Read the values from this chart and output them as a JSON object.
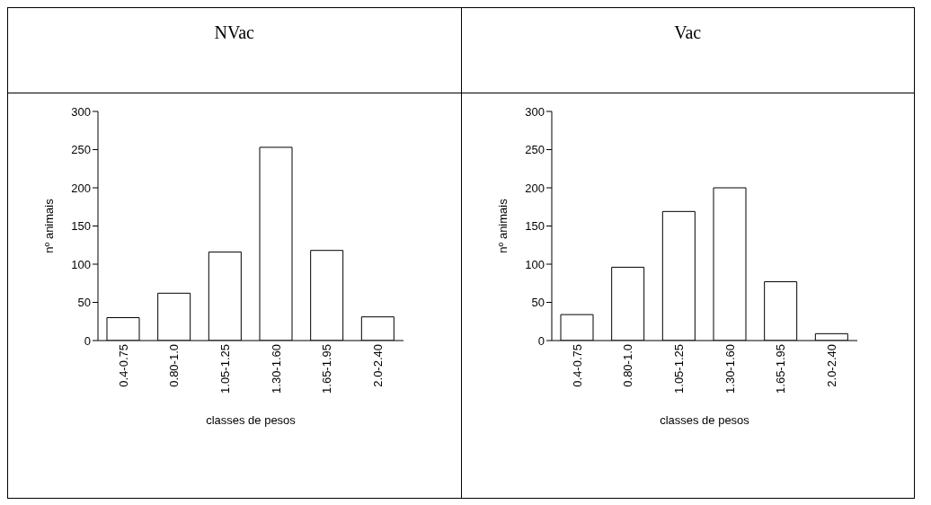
{
  "chart_data": [
    {
      "type": "bar",
      "title": "NVac",
      "xlabel": "classes de pesos",
      "ylabel": "nº animais",
      "categories": [
        "0.4-0.75",
        "0.80-1.0",
        "1.05-1.25",
        "1.30-1.60",
        "1.65-1.95",
        "2.0-2.40"
      ],
      "values": [
        30,
        62,
        116,
        253,
        118,
        31
      ],
      "color": "#ffffff",
      "ylim": [
        0,
        300
      ],
      "yticks": [
        0,
        50,
        100,
        150,
        200,
        250,
        300
      ]
    },
    {
      "type": "bar",
      "title": "Vac",
      "xlabel": "classes de pesos",
      "ylabel": "nº animais",
      "categories": [
        "0.4-0.75",
        "0.80-1.0",
        "1.05-1.25",
        "1.30-1.60",
        "1.65-1.95",
        "2.0-2.40"
      ],
      "values": [
        34,
        96,
        169,
        200,
        77,
        9
      ],
      "color": "#ffffff",
      "ylim": [
        0,
        300
      ],
      "yticks": [
        0,
        50,
        100,
        150,
        200,
        250,
        300
      ]
    }
  ]
}
